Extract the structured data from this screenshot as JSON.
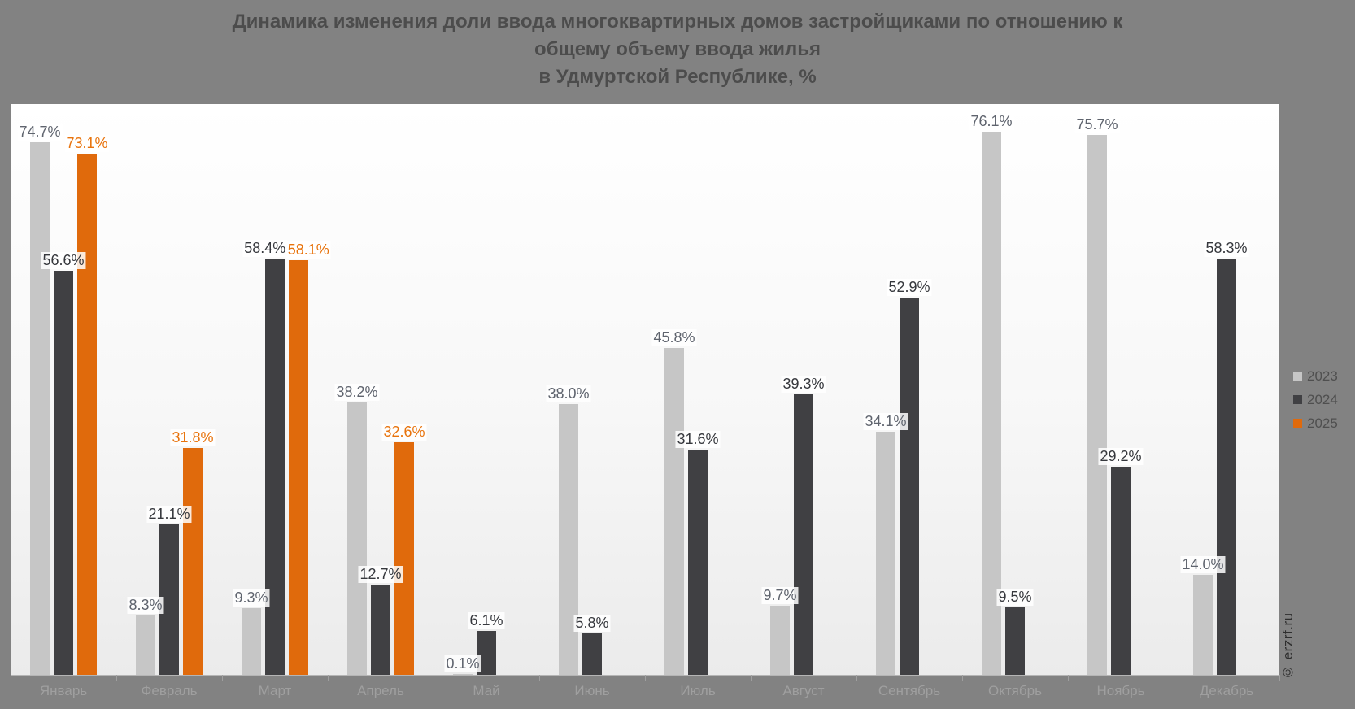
{
  "title": {
    "lines": [
      "Динамика изменения доли ввода многоквартирных домов застройщиками по отношению к",
      "общему объему ввода жилья",
      "в Удмуртской Республике, %"
    ]
  },
  "watermark": {
    "text": "© erzrf.ru"
  },
  "colors": {
    "background": "#828282",
    "plot_top": "#ffffff",
    "plot_bottom": "#ebebeb",
    "axis": "#b5b5b5",
    "month_label": "#9f9f9f",
    "legend_text": "#4f4f4f",
    "title_text": "#4c4c4c"
  },
  "chart_data": {
    "type": "bar",
    "title": "Динамика изменения доли ввода многоквартирных домов застройщиками по отношению к общему объему ввода жилья в Удмуртской Республике, %",
    "xlabel": "",
    "ylabel": "",
    "ylim": [
      0,
      80
    ],
    "grid": false,
    "legend_position": "right",
    "categories": [
      "Январь",
      "Февраль",
      "Март",
      "Апрель",
      "Май",
      "Июнь",
      "Июль",
      "Август",
      "Сентябрь",
      "Октябрь",
      "Ноябрь",
      "Декабрь"
    ],
    "series": [
      {
        "name": "2023",
        "color": "#c6c6c6",
        "label_color": "#5f646e",
        "values": [
          74.7,
          8.3,
          9.3,
          38.2,
          0.1,
          38.0,
          45.8,
          9.7,
          34.1,
          76.1,
          75.7,
          14.0
        ],
        "labels": [
          "74.7%",
          "8.3%",
          "9.3%",
          "38.2%",
          "0.1%",
          "38.0%",
          "45.8%",
          "9.7%",
          "34.1%",
          "76.1%",
          "75.7%",
          "14.0%"
        ]
      },
      {
        "name": "2024",
        "color": "#404043",
        "label_color": "#36383d",
        "values": [
          56.6,
          21.1,
          58.4,
          12.7,
          6.1,
          5.8,
          31.6,
          39.3,
          52.9,
          9.5,
          29.2,
          58.3
        ],
        "labels": [
          "56.6%",
          "21.1%",
          "58.4%",
          "12.7%",
          "6.1%",
          "5.8%",
          "31.6%",
          "39.3%",
          "52.9%",
          "9.5%",
          "29.2%",
          "58.3%"
        ]
      },
      {
        "name": "2025",
        "color": "#e06a0c",
        "label_color": "#e8730c",
        "values": [
          73.1,
          31.8,
          58.1,
          32.6,
          null,
          null,
          null,
          null,
          null,
          null,
          null,
          null
        ],
        "labels": [
          "73.1%",
          "31.8%",
          "58.1%",
          "32.6%",
          null,
          null,
          null,
          null,
          null,
          null,
          null,
          null
        ]
      }
    ]
  }
}
